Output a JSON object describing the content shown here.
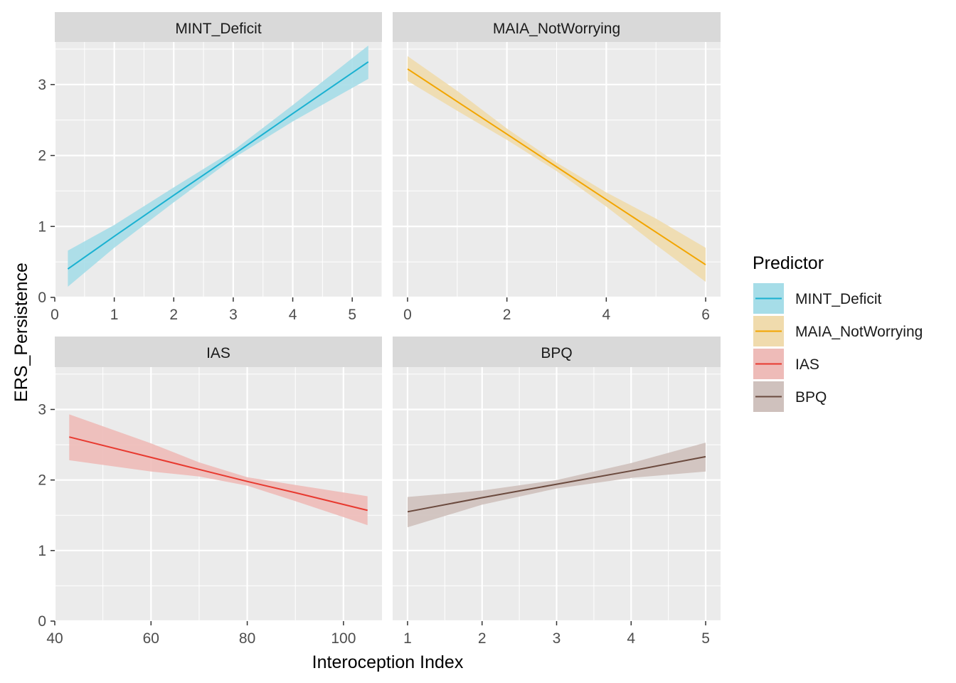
{
  "figure": {
    "xlabel": "Interoception Index",
    "ylabel": "ERS_Persistence",
    "background": "#ffffff",
    "panel_background": "#ebebeb",
    "strip_background": "#d9d9d9",
    "grid_color": "#ffffff",
    "text_color": "#1a1a1a",
    "tick_text_color": "#4d4d4d"
  },
  "legend": {
    "title": "Predictor",
    "placement": "right",
    "items": [
      {
        "label": "MINT_Deficit",
        "line_color": "#1ab1d1",
        "fill_color": "#a6dde8"
      },
      {
        "label": "MAIA_NotWorrying",
        "line_color": "#f2a500",
        "fill_color": "#f0dbad"
      },
      {
        "label": "IAS",
        "line_color": "#e8392f",
        "fill_color": "#eebbb8"
      },
      {
        "label": "BPQ",
        "line_color": "#6b4a3e",
        "fill_color": "#cfc1bd"
      }
    ]
  },
  "chart_data": [
    {
      "type": "line",
      "title": "MINT_Deficit",
      "xlim": [
        0,
        5.5
      ],
      "ylim": [
        0,
        3.6
      ],
      "xticks": [
        0,
        1,
        2,
        3,
        4,
        5
      ],
      "yticks": [
        0,
        1,
        2,
        3
      ],
      "x_minor_step": 0.5,
      "y_minor_step": 0.5,
      "series": [
        {
          "name": "MINT_Deficit",
          "line_color": "#1ab1d1",
          "fill_color": "#a6dde8",
          "x": [
            0.22,
            1.0,
            2.0,
            3.0,
            4.0,
            5.27
          ],
          "y": [
            0.4,
            0.86,
            1.44,
            2.01,
            2.59,
            3.32
          ],
          "lower": [
            0.15,
            0.7,
            1.34,
            1.96,
            2.48,
            3.08
          ],
          "upper": [
            0.66,
            1.02,
            1.55,
            2.07,
            2.71,
            3.55
          ]
        }
      ]
    },
    {
      "type": "line",
      "title": "MAIA_NotWorrying",
      "xlim": [
        -0.3,
        6.3
      ],
      "ylim": [
        0,
        3.6
      ],
      "xticks": [
        0,
        2,
        4,
        6
      ],
      "yticks": [
        0,
        1,
        2,
        3
      ],
      "x_minor_step": 1,
      "y_minor_step": 0.5,
      "series": [
        {
          "name": "MAIA_NotWorrying",
          "line_color": "#f2a500",
          "fill_color": "#f0dbad",
          "x": [
            0,
            1,
            2,
            3,
            4,
            5,
            6
          ],
          "y": [
            3.22,
            2.76,
            2.3,
            1.84,
            1.38,
            0.92,
            0.46
          ],
          "lower": [
            3.05,
            2.63,
            2.22,
            1.78,
            1.28,
            0.74,
            0.22
          ],
          "upper": [
            3.4,
            2.91,
            2.38,
            1.9,
            1.48,
            1.11,
            0.7
          ]
        }
      ]
    },
    {
      "type": "line",
      "title": "IAS",
      "xlim": [
        40,
        108
      ],
      "ylim": [
        0,
        3.6
      ],
      "xticks": [
        40,
        60,
        80,
        100
      ],
      "yticks": [
        0,
        1,
        2,
        3
      ],
      "x_minor_step": 10,
      "y_minor_step": 0.5,
      "series": [
        {
          "name": "IAS",
          "line_color": "#e8392f",
          "fill_color": "#eebbb8",
          "x": [
            43,
            60,
            70,
            80,
            90,
            105
          ],
          "y": [
            2.61,
            2.32,
            2.15,
            1.98,
            1.82,
            1.57
          ],
          "lower": [
            2.28,
            2.12,
            2.05,
            1.92,
            1.7,
            1.36
          ],
          "upper": [
            2.93,
            2.52,
            2.25,
            2.04,
            1.93,
            1.77
          ]
        }
      ]
    },
    {
      "type": "line",
      "title": "BPQ",
      "xlim": [
        0.8,
        5.2
      ],
      "ylim": [
        0,
        3.6
      ],
      "xticks": [
        1,
        2,
        3,
        4,
        5
      ],
      "yticks": [
        0,
        1,
        2,
        3
      ],
      "x_minor_step": 0.5,
      "y_minor_step": 0.5,
      "series": [
        {
          "name": "BPQ",
          "line_color": "#6b4a3e",
          "fill_color": "#cfc1bd",
          "x": [
            1,
            2,
            3,
            4,
            5
          ],
          "y": [
            1.55,
            1.75,
            1.94,
            2.13,
            2.33
          ],
          "lower": [
            1.33,
            1.65,
            1.88,
            2.03,
            2.12
          ],
          "upper": [
            1.76,
            1.85,
            2.0,
            2.24,
            2.53
          ]
        }
      ]
    }
  ]
}
